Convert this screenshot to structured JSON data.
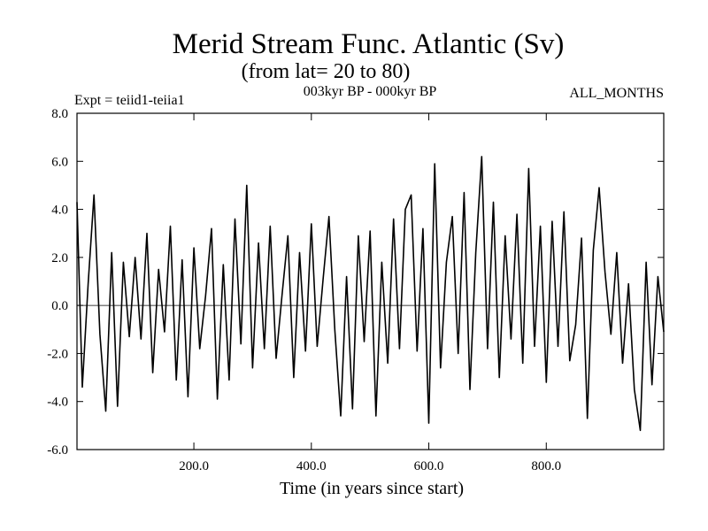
{
  "chart_data": {
    "type": "line",
    "title": "Merid Stream Func. Atlantic (Sv)",
    "subtitle": "(from lat= 20 to 80)",
    "left_label": "Expt = teiid1-teiia1",
    "center_label": "003kyr BP - 000kyr BP",
    "right_label": "ALL_MONTHS",
    "xlabel": "Time (in years since start)",
    "ylabel": "",
    "xlim": [
      1,
      1000
    ],
    "ylim": [
      -6.0,
      8.0
    ],
    "x_ticks": [
      200,
      400,
      600,
      800
    ],
    "x_tick_labels": [
      "200.0",
      "400.0",
      "600.0",
      "800.0"
    ],
    "y_ticks": [
      8,
      6,
      4,
      2,
      0,
      -2,
      -4,
      -6
    ],
    "y_tick_labels": [
      "8.0",
      "6.0",
      "4.0",
      "2.0",
      "0.0",
      "-2.0",
      "-4.0",
      "-6.0"
    ],
    "zero_line": true,
    "grid": false,
    "series": [
      {
        "color": "#000000",
        "x": [
          1,
          10,
          20,
          30,
          40,
          50,
          60,
          70,
          80,
          90,
          100,
          110,
          120,
          130,
          140,
          150,
          160,
          170,
          180,
          190,
          200,
          210,
          220,
          230,
          240,
          250,
          260,
          270,
          280,
          290,
          300,
          310,
          320,
          330,
          340,
          350,
          360,
          370,
          380,
          390,
          400,
          410,
          420,
          430,
          440,
          450,
          460,
          470,
          480,
          490,
          500,
          510,
          520,
          530,
          540,
          550,
          560,
          570,
          580,
          590,
          600,
          610,
          620,
          630,
          640,
          650,
          660,
          670,
          680,
          690,
          700,
          710,
          720,
          730,
          740,
          750,
          760,
          770,
          780,
          790,
          800,
          810,
          820,
          830,
          840,
          850,
          860,
          870,
          880,
          890,
          900,
          910,
          920,
          930,
          940,
          950,
          960,
          970,
          980,
          990,
          1000
        ],
        "y": [
          4.3,
          -3.4,
          0.9,
          4.6,
          -1.2,
          -4.4,
          2.2,
          -4.2,
          1.8,
          -1.3,
          2.0,
          -1.4,
          3.0,
          -2.8,
          1.5,
          -1.1,
          3.3,
          -3.1,
          1.9,
          -3.8,
          2.4,
          -1.8,
          0.4,
          3.2,
          -3.9,
          1.7,
          -3.1,
          3.6,
          -1.6,
          5.0,
          -2.6,
          2.6,
          -1.8,
          3.3,
          -2.2,
          0.4,
          2.9,
          -3.0,
          2.2,
          -1.9,
          3.4,
          -1.7,
          1.1,
          3.7,
          -1.0,
          -4.6,
          1.2,
          -4.3,
          2.9,
          -1.5,
          3.1,
          -4.6,
          1.8,
          -2.4,
          3.6,
          -1.8,
          4.0,
          4.6,
          -1.9,
          3.2,
          -4.9,
          5.9,
          -2.6,
          1.8,
          3.7,
          -2.0,
          4.7,
          -3.5,
          2.2,
          6.2,
          -1.8,
          4.3,
          -3.0,
          2.9,
          -1.4,
          3.8,
          -2.4,
          5.7,
          -1.7,
          3.3,
          -3.2,
          3.5,
          -1.7,
          3.9,
          -2.3,
          -0.8,
          2.8,
          -4.7,
          2.3,
          4.9,
          1.4,
          -1.2,
          2.2,
          -2.4,
          0.9,
          -3.5,
          -5.2,
          1.8,
          -3.3,
          1.2,
          -1.1
        ]
      }
    ]
  }
}
